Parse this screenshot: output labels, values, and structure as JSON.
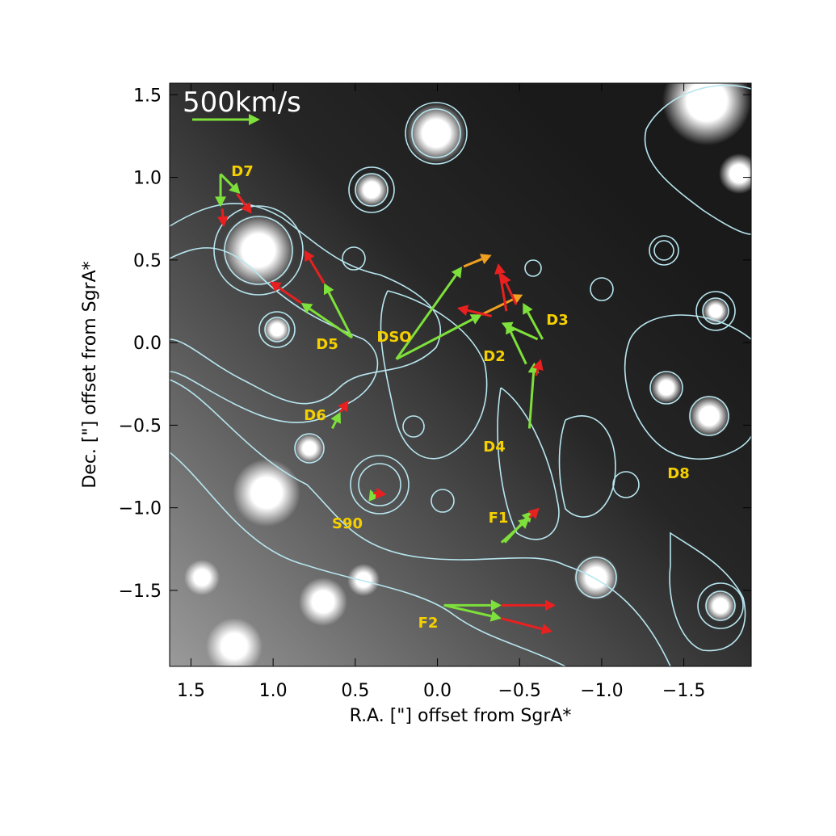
{
  "chart_data": {
    "type": "vector",
    "scale_label": "500km/s",
    "xlabel": "R.A. [\"] offset from SgrA*",
    "ylabel": "Dec. [\"] offset from SgrA*",
    "xlim": [
      1.63,
      -1.91
    ],
    "ylim": [
      -1.96,
      1.57
    ],
    "xticks": [
      {
        "value": 1.5,
        "label": "1.5"
      },
      {
        "value": 1.0,
        "label": "1.0"
      },
      {
        "value": 0.5,
        "label": "0.5"
      },
      {
        "value": 0.0,
        "label": "0.0"
      },
      {
        "value": -0.5,
        "label": "−0.5"
      },
      {
        "value": -1.0,
        "label": "−1.0"
      },
      {
        "value": -1.5,
        "label": "−1.5"
      }
    ],
    "yticks": [
      {
        "value": 1.5,
        "label": "1.5"
      },
      {
        "value": 1.0,
        "label": "1.0"
      },
      {
        "value": 0.5,
        "label": "0.5"
      },
      {
        "value": 0.0,
        "label": "0.0"
      },
      {
        "value": -0.5,
        "label": "−0.5"
      },
      {
        "value": -1.0,
        "label": "−1.0"
      },
      {
        "value": -1.5,
        "label": "−1.5"
      }
    ],
    "sources": [
      "D7",
      "D5",
      "DSO",
      "D2",
      "D3",
      "D6",
      "D4",
      "D8",
      "S90",
      "F1",
      "F2"
    ],
    "arrows": [
      {
        "x": 1.32,
        "y": 1.02,
        "dx": 0,
        "dy": -0.2,
        "color": "#7ee03a"
      },
      {
        "x": 1.32,
        "y": 1.02,
        "dx": -0.12,
        "dy": -0.12,
        "color": "#7ee03a"
      },
      {
        "x": 1.22,
        "y": 0.9,
        "dx": -0.09,
        "dy": -0.12,
        "color": "#e82020"
      },
      {
        "x": 1.31,
        "y": 0.81,
        "dx": -0.01,
        "dy": -0.11,
        "color": "#e82020"
      },
      {
        "x": 0.52,
        "y": 0.03,
        "dx": 0.31,
        "dy": 0.21,
        "color": "#7ee03a"
      },
      {
        "x": 0.52,
        "y": 0.03,
        "dx": 0.17,
        "dy": 0.33,
        "color": "#7ee03a"
      },
      {
        "x": 0.83,
        "y": 0.24,
        "dx": 0.19,
        "dy": 0.13,
        "color": "#e82020"
      },
      {
        "x": 0.69,
        "y": 0.36,
        "dx": 0.12,
        "dy": 0.2,
        "color": "#e82020"
      },
      {
        "x": 0.25,
        "y": -0.1,
        "dx": -0.4,
        "dy": 0.56,
        "color": "#7ee03a"
      },
      {
        "x": 0.25,
        "y": -0.1,
        "dx": -0.52,
        "dy": 0.27,
        "color": "#7ee03a"
      },
      {
        "x": -0.16,
        "y": 0.46,
        "dx": -0.17,
        "dy": 0.07,
        "color": "#f0a020"
      },
      {
        "x": -0.27,
        "y": 0.17,
        "dx": -0.25,
        "dy": 0.12,
        "color": "#f0a020"
      },
      {
        "x": -0.33,
        "y": 0.16,
        "dx": 0.21,
        "dy": 0.05,
        "color": "#e82020"
      },
      {
        "x": -0.42,
        "y": 0.19,
        "dx": 0.05,
        "dy": 0.29,
        "color": "#e82020"
      },
      {
        "x": -0.48,
        "y": 0.23,
        "dx": 0.09,
        "dy": 0.19,
        "color": "#e82020"
      },
      {
        "x": -0.61,
        "y": 0.02,
        "dx": 0.22,
        "dy": 0.1,
        "color": "#7ee03a"
      },
      {
        "x": -0.64,
        "y": 0.02,
        "dx": 0.12,
        "dy": 0.22,
        "color": "#7ee03a"
      },
      {
        "x": -0.54,
        "y": -0.13,
        "dx": 0.12,
        "dy": 0.25,
        "color": "#7ee03a"
      },
      {
        "x": -0.56,
        "y": -0.52,
        "dx": -0.03,
        "dy": 0.4,
        "color": "#7ee03a"
      },
      {
        "x": -0.6,
        "y": -0.2,
        "dx": -0.03,
        "dy": 0.1,
        "color": "#e82020"
      },
      {
        "x": 0.64,
        "y": -0.52,
        "dx": -0.05,
        "dy": 0.1,
        "color": "#7ee03a"
      },
      {
        "x": 0.59,
        "y": -0.42,
        "dx": -0.05,
        "dy": 0.07,
        "color": "#e82020"
      },
      {
        "x": 0.39,
        "y": -0.94,
        "dx": 0.02,
        "dy": 0.05,
        "color": "#7ee03a"
      },
      {
        "x": 0.39,
        "y": -0.91,
        "dx": -0.08,
        "dy": -0.01,
        "color": "#e82020"
      },
      {
        "x": -0.39,
        "y": -1.21,
        "dx": -0.17,
        "dy": 0.15,
        "color": "#7ee03a"
      },
      {
        "x": -0.41,
        "y": -1.21,
        "dx": -0.17,
        "dy": 0.19,
        "color": "#7ee03a"
      },
      {
        "x": -0.56,
        "y": -1.06,
        "dx": -0.06,
        "dy": 0.06,
        "color": "#e82020"
      },
      {
        "x": -0.04,
        "y": -1.59,
        "dx": -0.35,
        "dy": 0,
        "color": "#7ee03a"
      },
      {
        "x": -0.04,
        "y": -1.59,
        "dx": -0.35,
        "dy": -0.08,
        "color": "#7ee03a"
      },
      {
        "x": -0.39,
        "y": -1.59,
        "dx": -0.33,
        "dy": 0,
        "color": "#e82020"
      },
      {
        "x": -0.39,
        "y": -1.67,
        "dx": -0.31,
        "dy": -0.08,
        "color": "#e82020"
      }
    ]
  }
}
